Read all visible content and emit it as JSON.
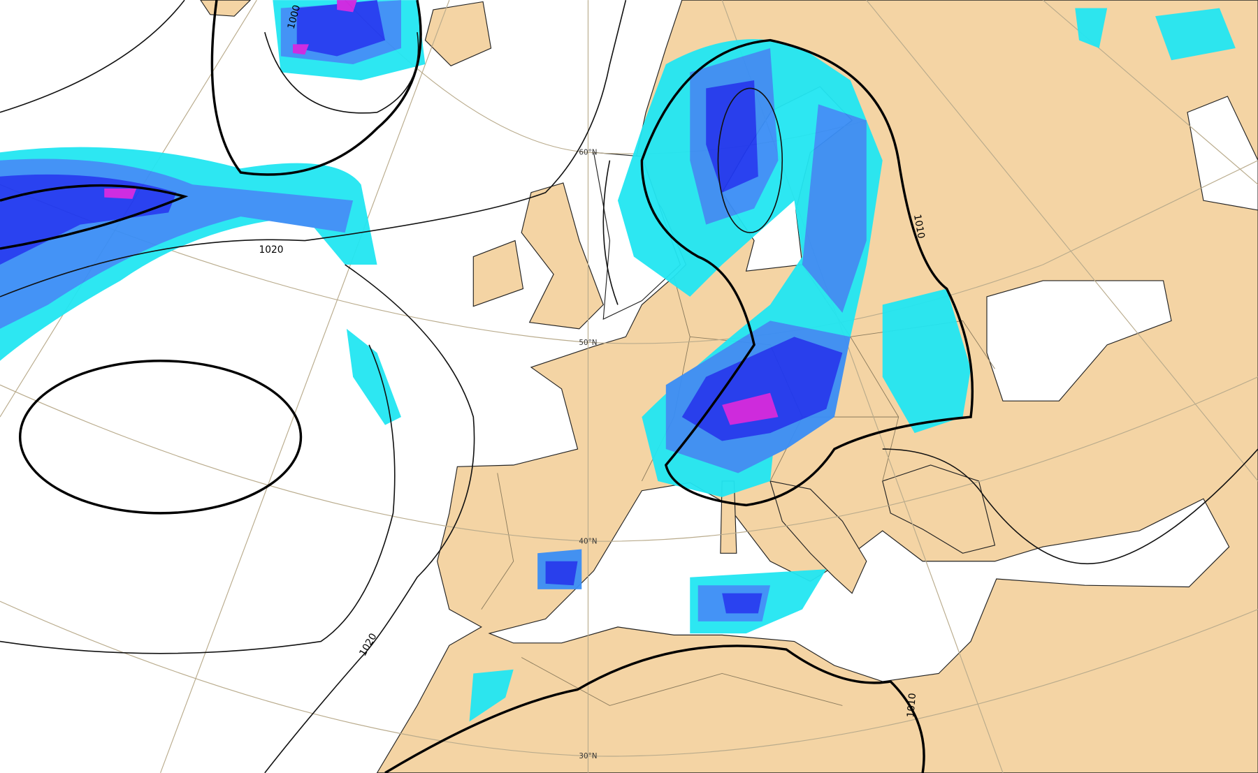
{
  "isobar_labels": [
    "1000",
    "1020",
    "1020",
    "1010",
    "1010"
  ],
  "latitude_labels": [
    "60°N",
    "50°N",
    "40°N",
    "30°N"
  ]
}
